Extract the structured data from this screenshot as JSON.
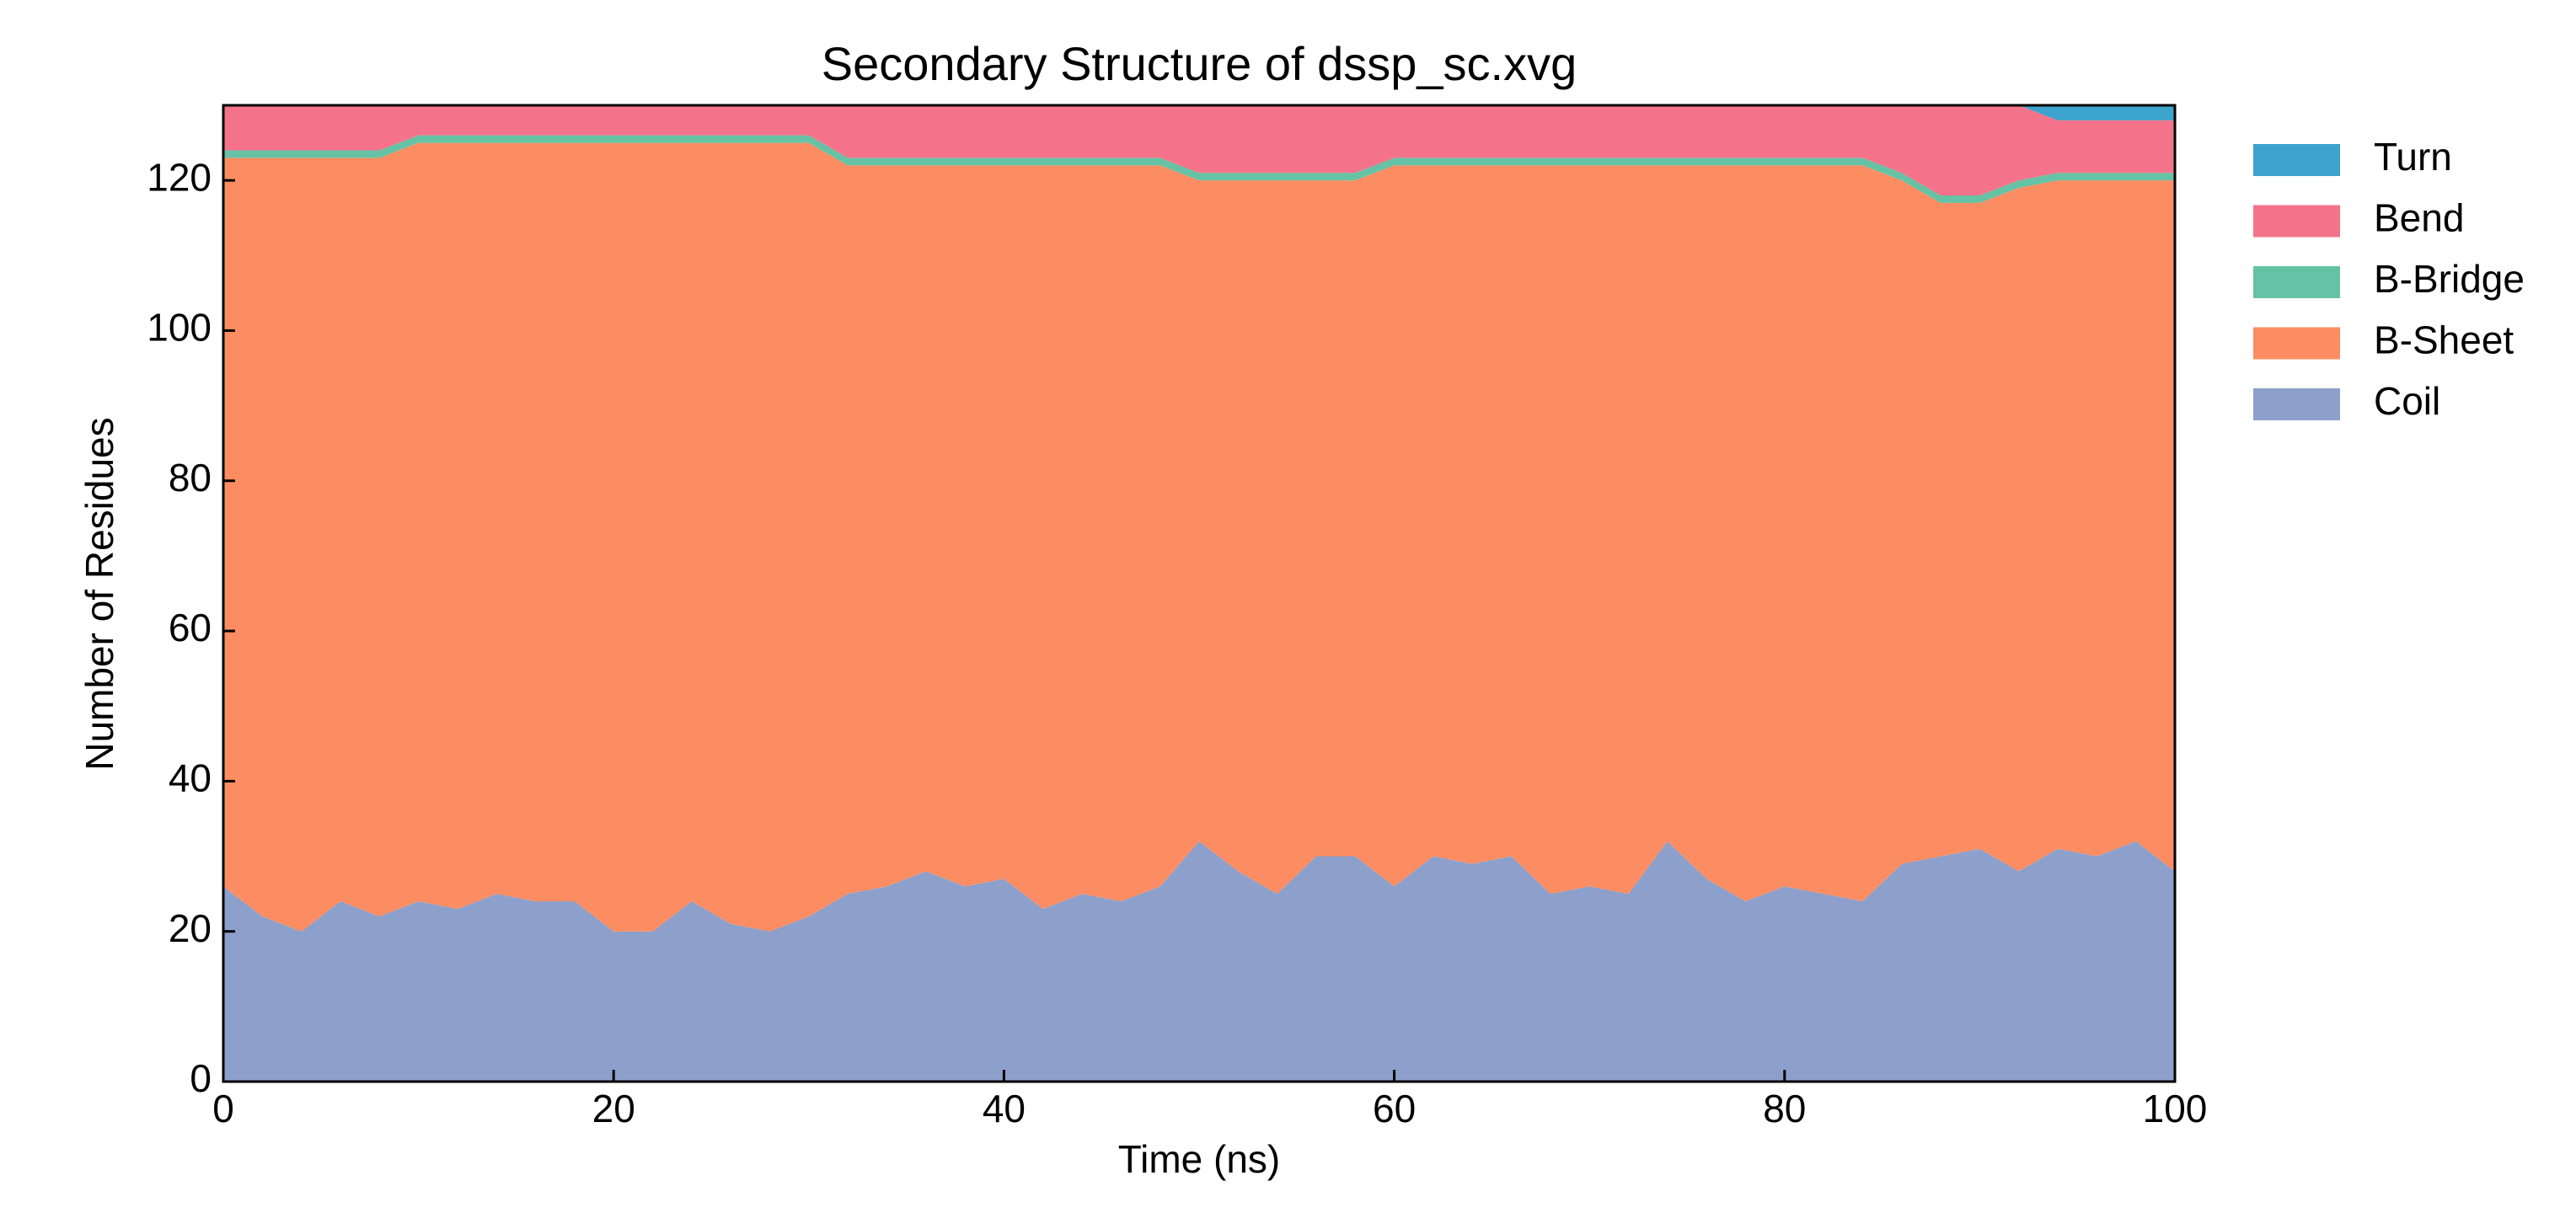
{
  "chart_data": {
    "type": "stacked_area",
    "title": "Secondary Structure of dssp_sc.xvg",
    "x_label": "Time (ns)",
    "y_label": "Number of Residues",
    "x": [
      0,
      2,
      4,
      6,
      8,
      10,
      12,
      14,
      16,
      18,
      20,
      22,
      24,
      26,
      28,
      30,
      32,
      34,
      36,
      38,
      40,
      42,
      44,
      46,
      48,
      50,
      52,
      54,
      56,
      58,
      60,
      62,
      64,
      66,
      68,
      70,
      72,
      74,
      76,
      78,
      80,
      82,
      84,
      86,
      88,
      90,
      92,
      94,
      96,
      98,
      100
    ],
    "series": [
      {
        "name": "Coil",
        "color": "#8da0cb",
        "values": [
          26,
          22,
          20,
          24,
          22,
          24,
          23,
          25,
          24,
          24,
          20,
          20,
          24,
          21,
          20,
          22,
          25,
          26,
          28,
          26,
          27,
          23,
          25,
          24,
          26,
          32,
          28,
          25,
          30,
          30,
          26,
          30,
          29,
          30,
          25,
          26,
          25,
          32,
          27,
          24,
          26,
          25,
          24,
          29,
          30,
          31,
          28,
          31,
          30,
          32,
          28
        ]
      },
      {
        "name": "B-Sheet",
        "color": "#fc8d62",
        "values": [
          97,
          101,
          103,
          99,
          101,
          101,
          102,
          100,
          101,
          101,
          105,
          105,
          101,
          104,
          105,
          103,
          97,
          96,
          94,
          96,
          95,
          99,
          97,
          98,
          96,
          88,
          92,
          95,
          90,
          90,
          96,
          92,
          93,
          92,
          97,
          96,
          97,
          90,
          95,
          98,
          96,
          97,
          98,
          91,
          87,
          86,
          91,
          89,
          90,
          88,
          92
        ]
      },
      {
        "name": "B-Bridge",
        "color": "#66c2a5",
        "values": [
          1,
          1,
          1,
          1,
          1,
          1,
          1,
          1,
          1,
          1,
          1,
          1,
          1,
          1,
          1,
          1,
          1,
          1,
          1,
          1,
          1,
          1,
          1,
          1,
          1,
          1,
          1,
          1,
          1,
          1,
          1,
          1,
          1,
          1,
          1,
          1,
          1,
          1,
          1,
          1,
          1,
          1,
          1,
          1,
          1,
          1,
          1,
          1,
          1,
          1,
          1
        ]
      },
      {
        "name": "Bend",
        "color": "#f4738a",
        "values": [
          6,
          6,
          6,
          6,
          6,
          4,
          4,
          4,
          4,
          4,
          4,
          4,
          4,
          4,
          4,
          4,
          7,
          7,
          7,
          7,
          7,
          7,
          7,
          7,
          7,
          9,
          9,
          9,
          9,
          9,
          7,
          7,
          7,
          7,
          7,
          7,
          7,
          7,
          7,
          7,
          7,
          7,
          7,
          9,
          12,
          12,
          10,
          7,
          7,
          7,
          7
        ]
      },
      {
        "name": "Turn",
        "color": "#3ba3cc",
        "values": [
          0,
          0,
          0,
          0,
          0,
          0,
          0,
          0,
          0,
          0,
          0,
          0,
          0,
          0,
          0,
          0,
          0,
          0,
          0,
          0,
          0,
          0,
          0,
          0,
          0,
          0,
          0,
          0,
          0,
          0,
          0,
          0,
          0,
          0,
          0,
          0,
          0,
          0,
          0,
          0,
          0,
          0,
          0,
          0,
          0,
          0,
          0,
          2,
          2,
          2,
          2
        ]
      }
    ],
    "xlim": [
      0,
      100
    ],
    "xticks": [
      0,
      20,
      40,
      60,
      80,
      100
    ],
    "ylim": [
      0,
      130
    ],
    "yticks": [
      0,
      20,
      40,
      60,
      80,
      100,
      120
    ],
    "legend": "outside-right"
  }
}
